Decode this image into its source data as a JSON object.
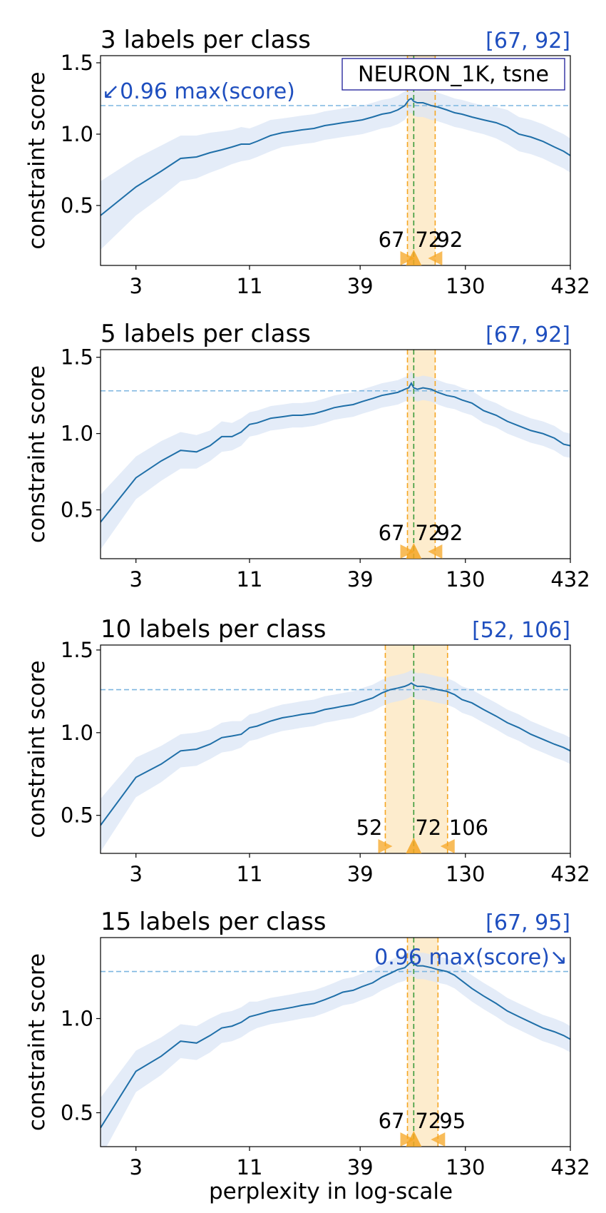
{
  "figure": {
    "xlabel": "perplexity in log-scale",
    "dataset_label": "NEURON_1K, tsne",
    "colors": {
      "line": "#1f6fa8",
      "band": "#dbe6f6",
      "threshold": "#7db6e0",
      "range_fill": "#fde9c4",
      "range_edge": "#f5a623",
      "best": "#3a9a3a",
      "range_text": "#1f4fbf"
    }
  },
  "chart_data": [
    {
      "type": "line",
      "title": "3 labels per class",
      "range_label": "[67, 92]",
      "ylabel": "constraint score",
      "xscale": "log",
      "xlim": [
        2,
        432
      ],
      "ylim": [
        0.08,
        1.55
      ],
      "xticks": [
        3,
        11,
        39,
        130,
        432
      ],
      "yticks": [
        0.5,
        1.0,
        1.5
      ],
      "threshold": 1.2,
      "range": [
        67,
        92
      ],
      "best": 72,
      "marker_labels": [
        "67",
        "72",
        "92"
      ],
      "annotation": "↙0.96 max(score)",
      "annotation_side": "left",
      "x": [
        2,
        3,
        4,
        5,
        6,
        7,
        8,
        9,
        10,
        11,
        12,
        14,
        16,
        18,
        20,
        23,
        26,
        29,
        32,
        36,
        40,
        45,
        50,
        55,
        60,
        65,
        68,
        70,
        72,
        75,
        80,
        88,
        95,
        105,
        115,
        125,
        140,
        160,
        185,
        210,
        240,
        275,
        315,
        360,
        400,
        432
      ],
      "y": [
        0.43,
        0.63,
        0.74,
        0.83,
        0.84,
        0.87,
        0.89,
        0.91,
        0.93,
        0.93,
        0.95,
        0.99,
        1.01,
        1.02,
        1.03,
        1.04,
        1.06,
        1.07,
        1.08,
        1.09,
        1.1,
        1.12,
        1.14,
        1.15,
        1.17,
        1.2,
        1.24,
        1.25,
        1.23,
        1.22,
        1.22,
        1.2,
        1.19,
        1.17,
        1.15,
        1.14,
        1.12,
        1.1,
        1.08,
        1.05,
        1.0,
        0.98,
        0.95,
        0.91,
        0.88,
        0.85
      ],
      "band": [
        0.24,
        0.2,
        0.18,
        0.16,
        0.15,
        0.14,
        0.13,
        0.12,
        0.12,
        0.11,
        0.11,
        0.11,
        0.1,
        0.1,
        0.1,
        0.1,
        0.1,
        0.1,
        0.1,
        0.1,
        0.1,
        0.1,
        0.1,
        0.1,
        0.1,
        0.1,
        0.1,
        0.1,
        0.1,
        0.1,
        0.1,
        0.1,
        0.1,
        0.1,
        0.1,
        0.1,
        0.1,
        0.1,
        0.11,
        0.12,
        0.12,
        0.12,
        0.12,
        0.12,
        0.12,
        0.12
      ]
    },
    {
      "type": "line",
      "title": "5 labels per class",
      "range_label": "[67, 92]",
      "ylabel": "constraint score",
      "xscale": "log",
      "xlim": [
        2,
        432
      ],
      "ylim": [
        0.18,
        1.55
      ],
      "xticks": [
        3,
        11,
        39,
        130,
        432
      ],
      "yticks": [
        0.5,
        1.0,
        1.5
      ],
      "threshold": 1.28,
      "range": [
        67,
        92
      ],
      "best": 72,
      "marker_labels": [
        "67",
        "72",
        "92"
      ],
      "annotation": "",
      "annotation_side": "left",
      "x": [
        2,
        3,
        4,
        5,
        6,
        7,
        8,
        9,
        10,
        11,
        12,
        14,
        16,
        18,
        20,
        23,
        26,
        29,
        32,
        36,
        40,
        45,
        50,
        55,
        60,
        65,
        68,
        70,
        72,
        75,
        80,
        88,
        95,
        105,
        115,
        125,
        140,
        160,
        185,
        210,
        240,
        275,
        315,
        360,
        400,
        432
      ],
      "y": [
        0.42,
        0.71,
        0.82,
        0.89,
        0.88,
        0.92,
        0.98,
        0.98,
        1.01,
        1.06,
        1.07,
        1.1,
        1.11,
        1.12,
        1.12,
        1.13,
        1.15,
        1.17,
        1.18,
        1.19,
        1.21,
        1.23,
        1.25,
        1.26,
        1.27,
        1.29,
        1.3,
        1.33,
        1.3,
        1.29,
        1.3,
        1.29,
        1.27,
        1.25,
        1.24,
        1.22,
        1.2,
        1.15,
        1.12,
        1.08,
        1.05,
        1.02,
        1.0,
        0.97,
        0.93,
        0.92
      ],
      "band": [
        0.18,
        0.14,
        0.13,
        0.12,
        0.11,
        0.1,
        0.1,
        0.09,
        0.09,
        0.08,
        0.08,
        0.08,
        0.08,
        0.08,
        0.08,
        0.08,
        0.08,
        0.08,
        0.08,
        0.08,
        0.08,
        0.08,
        0.08,
        0.08,
        0.08,
        0.08,
        0.08,
        0.08,
        0.08,
        0.08,
        0.08,
        0.08,
        0.08,
        0.08,
        0.08,
        0.08,
        0.08,
        0.08,
        0.08,
        0.08,
        0.08,
        0.08,
        0.08,
        0.08,
        0.08,
        0.08
      ]
    },
    {
      "type": "line",
      "title": "10 labels per class",
      "range_label": "[52, 106]",
      "ylabel": "constraint score",
      "xscale": "log",
      "xlim": [
        2,
        432
      ],
      "ylim": [
        0.27,
        1.53
      ],
      "xticks": [
        3,
        11,
        39,
        130,
        432
      ],
      "yticks": [
        0.5,
        1.0,
        1.5
      ],
      "threshold": 1.26,
      "range": [
        52,
        106
      ],
      "best": 72,
      "marker_labels": [
        "52",
        "72",
        "106"
      ],
      "annotation": "",
      "annotation_side": "left",
      "x": [
        2,
        3,
        4,
        5,
        6,
        7,
        8,
        9,
        10,
        11,
        12,
        14,
        16,
        18,
        20,
        23,
        26,
        29,
        32,
        36,
        40,
        45,
        50,
        55,
        60,
        65,
        68,
        70,
        72,
        75,
        80,
        88,
        95,
        105,
        115,
        125,
        140,
        160,
        185,
        210,
        240,
        275,
        315,
        360,
        400,
        432
      ],
      "y": [
        0.44,
        0.73,
        0.81,
        0.89,
        0.9,
        0.93,
        0.97,
        0.98,
        0.99,
        1.03,
        1.04,
        1.07,
        1.09,
        1.1,
        1.11,
        1.12,
        1.14,
        1.15,
        1.16,
        1.17,
        1.19,
        1.21,
        1.24,
        1.26,
        1.27,
        1.28,
        1.29,
        1.3,
        1.29,
        1.28,
        1.28,
        1.27,
        1.26,
        1.25,
        1.23,
        1.2,
        1.18,
        1.14,
        1.1,
        1.06,
        1.03,
        0.99,
        0.96,
        0.93,
        0.91,
        0.89
      ],
      "band": [
        0.16,
        0.12,
        0.11,
        0.1,
        0.1,
        0.09,
        0.09,
        0.09,
        0.08,
        0.08,
        0.08,
        0.08,
        0.08,
        0.08,
        0.08,
        0.08,
        0.08,
        0.08,
        0.08,
        0.08,
        0.08,
        0.08,
        0.08,
        0.08,
        0.08,
        0.08,
        0.08,
        0.08,
        0.08,
        0.08,
        0.08,
        0.08,
        0.08,
        0.08,
        0.08,
        0.08,
        0.08,
        0.08,
        0.08,
        0.08,
        0.08,
        0.08,
        0.08,
        0.08,
        0.08,
        0.08
      ]
    },
    {
      "type": "line",
      "title": "15 labels per class",
      "range_label": "[67, 95]",
      "ylabel": "constraint score",
      "xscale": "log",
      "xlim": [
        2,
        432
      ],
      "ylim": [
        0.32,
        1.43
      ],
      "xticks": [
        3,
        11,
        39,
        130,
        432
      ],
      "yticks": [
        0.5,
        1.0
      ],
      "threshold": 1.25,
      "range": [
        67,
        95
      ],
      "best": 72,
      "marker_labels": [
        "67",
        "72",
        "95"
      ],
      "annotation": "0.96 max(score)↘",
      "annotation_side": "right",
      "x": [
        2,
        3,
        4,
        5,
        6,
        7,
        8,
        9,
        10,
        11,
        12,
        14,
        16,
        18,
        20,
        23,
        26,
        29,
        32,
        36,
        40,
        45,
        50,
        55,
        60,
        65,
        68,
        70,
        72,
        75,
        80,
        88,
        95,
        105,
        115,
        125,
        140,
        160,
        185,
        210,
        240,
        275,
        315,
        360,
        400,
        432
      ],
      "y": [
        0.42,
        0.72,
        0.8,
        0.88,
        0.87,
        0.91,
        0.95,
        0.96,
        0.98,
        1.01,
        1.02,
        1.04,
        1.05,
        1.06,
        1.07,
        1.08,
        1.1,
        1.12,
        1.14,
        1.15,
        1.17,
        1.19,
        1.22,
        1.24,
        1.26,
        1.27,
        1.29,
        1.3,
        1.29,
        1.28,
        1.28,
        1.27,
        1.26,
        1.25,
        1.23,
        1.2,
        1.16,
        1.12,
        1.08,
        1.04,
        1.01,
        0.98,
        0.95,
        0.93,
        0.91,
        0.89
      ],
      "band": [
        0.16,
        0.11,
        0.1,
        0.09,
        0.09,
        0.09,
        0.08,
        0.08,
        0.08,
        0.08,
        0.07,
        0.07,
        0.07,
        0.07,
        0.07,
        0.07,
        0.07,
        0.07,
        0.07,
        0.07,
        0.07,
        0.07,
        0.07,
        0.07,
        0.07,
        0.07,
        0.07,
        0.07,
        0.07,
        0.07,
        0.07,
        0.07,
        0.07,
        0.07,
        0.07,
        0.07,
        0.07,
        0.07,
        0.07,
        0.07,
        0.07,
        0.07,
        0.07,
        0.07,
        0.07,
        0.07
      ]
    }
  ]
}
